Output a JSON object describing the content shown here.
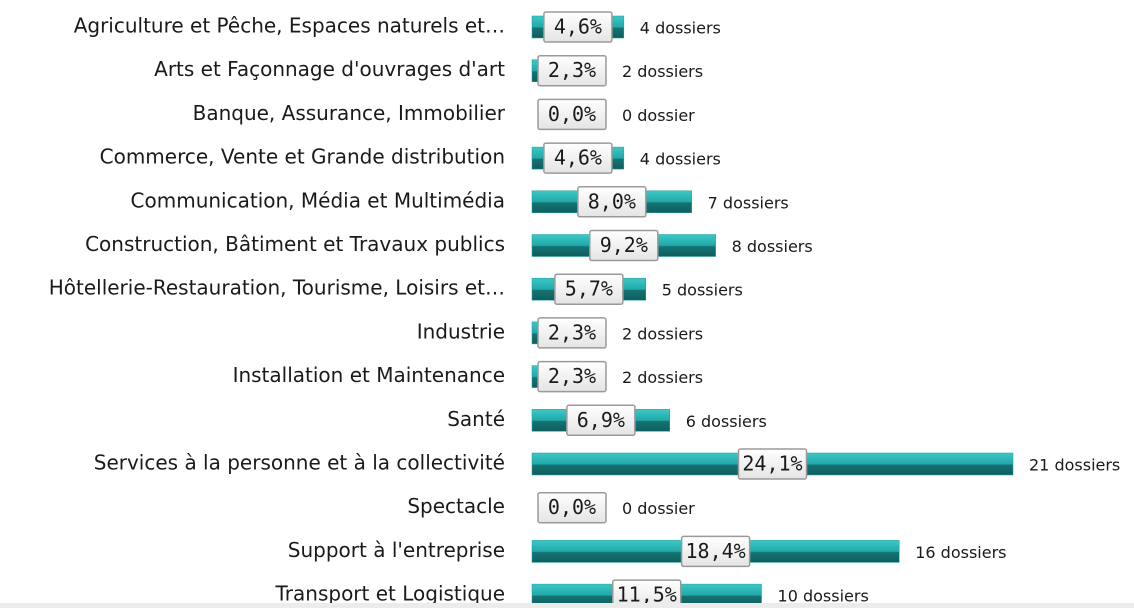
{
  "chart_data": {
    "type": "hbar",
    "categories": [
      "Agriculture et Pêche, Espaces naturels et…",
      "Arts et Façonnage d'ouvrages d'art",
      "Banque, Assurance, Immobilier",
      "Commerce, Vente et Grande distribution",
      "Communication, Média et Multimédia",
      "Construction, Bâtiment et Travaux publics",
      "Hôtellerie-Restauration, Tourisme, Loisirs et…",
      "Industrie",
      "Installation et Maintenance",
      "Santé",
      "Services à la personne et à la collectivité",
      "Spectacle",
      "Support à l'entreprise",
      "Transport et Logistique"
    ],
    "values": [
      4.6,
      2.3,
      0.0,
      4.6,
      8.0,
      9.2,
      5.7,
      2.3,
      2.3,
      6.9,
      24.1,
      0.0,
      18.4,
      11.5
    ],
    "value_labels": [
      "4,6%",
      "2,3%",
      "0,0%",
      "4,6%",
      "8,0%",
      "9,2%",
      "5,7%",
      "2,3%",
      "2,3%",
      "6,9%",
      "24,1%",
      "0,0%",
      "18,4%",
      "11,5%"
    ],
    "annotations": [
      "4 dossiers",
      "2 dossiers",
      "0 dossier",
      "4 dossiers",
      "7 dossiers",
      "8 dossiers",
      "5 dossiers",
      "2 dossiers",
      "2 dossiers",
      "6 dossiers",
      "21 dossiers",
      "0 dossier",
      "16 dossiers",
      "10 dossiers"
    ],
    "color": "#1f9e9e",
    "xlim": [
      0,
      24.1
    ]
  }
}
